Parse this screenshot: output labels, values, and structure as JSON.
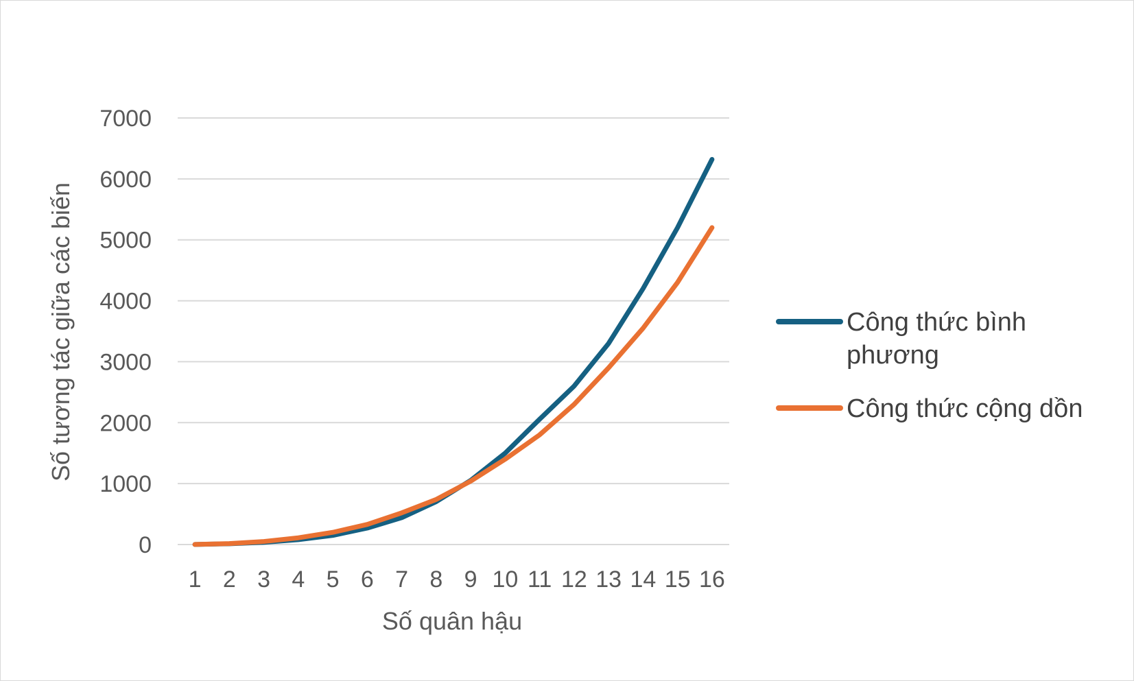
{
  "chart_data": {
    "type": "line",
    "title": "",
    "xlabel": "Số quân hậu",
    "ylabel": "Số tương tác giữa các biến",
    "categories": [
      "1",
      "2",
      "3",
      "4",
      "5",
      "6",
      "7",
      "8",
      "9",
      "10",
      "11",
      "12",
      "13",
      "14",
      "15",
      "16"
    ],
    "ylim": [
      0,
      7000
    ],
    "yticks": [
      "0",
      "1000",
      "2000",
      "3000",
      "4000",
      "5000",
      "6000",
      "7000"
    ],
    "grid": true,
    "legend_position": "right",
    "series": [
      {
        "name": "Công thức bình phương",
        "color": "#156082",
        "values": [
          1,
          12,
          36,
          80,
          150,
          270,
          441,
          704,
          1053,
          1500,
          2057,
          2600,
          3300,
          4200,
          5200,
          6320
        ]
      },
      {
        "name": "Công thức cộng dồn",
        "color": "#E97132",
        "values": [
          1,
          15,
          50,
          110,
          200,
          330,
          520,
          740,
          1040,
          1400,
          1800,
          2300,
          2900,
          3550,
          4300,
          5200
        ]
      }
    ]
  }
}
